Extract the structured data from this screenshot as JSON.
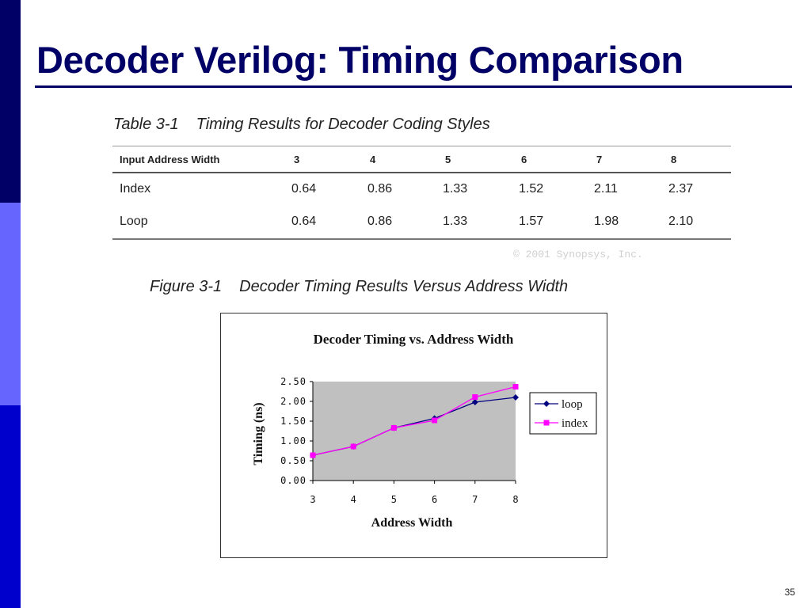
{
  "slide": {
    "title": "Decoder Verilog: Timing Comparison",
    "page_number": "35",
    "copyright": "© 2001 Synopsys, Inc."
  },
  "table": {
    "caption_number": "Table 3-1",
    "caption_text": "Timing Results for Decoder Coding Styles",
    "headers": [
      "Input Address Width",
      "3",
      "4",
      "5",
      "6",
      "7",
      "8"
    ],
    "rows": [
      [
        "Index",
        "0.64",
        "0.86",
        "1.33",
        "1.52",
        "2.11",
        "2.37"
      ],
      [
        "Loop",
        "0.64",
        "0.86",
        "1.33",
        "1.57",
        "1.98",
        "2.10"
      ]
    ]
  },
  "figure": {
    "caption_number": "Figure 3-1",
    "caption_text": "Decoder Timing Results Versus Address Width"
  },
  "colors": {
    "title": "#000066",
    "loop_series": "#000080",
    "index_series": "#ff00ff",
    "plot_background": "#c0c0c0"
  },
  "chart_data": {
    "type": "line",
    "title": "Decoder Timing vs. Address Width",
    "xlabel": "Address Width",
    "ylabel": "Timing (ns)",
    "x": [
      3,
      4,
      5,
      6,
      7,
      8
    ],
    "ylim": [
      0,
      2.5
    ],
    "yticks": [
      "0.00",
      "0.50",
      "1.00",
      "1.50",
      "2.00",
      "2.50"
    ],
    "grid": false,
    "legend_position": "right",
    "series": [
      {
        "name": "loop",
        "values": [
          0.64,
          0.86,
          1.33,
          1.57,
          1.98,
          2.1
        ],
        "marker": "diamond"
      },
      {
        "name": "index",
        "values": [
          0.64,
          0.86,
          1.33,
          1.52,
          2.11,
          2.37
        ],
        "marker": "square"
      }
    ]
  }
}
